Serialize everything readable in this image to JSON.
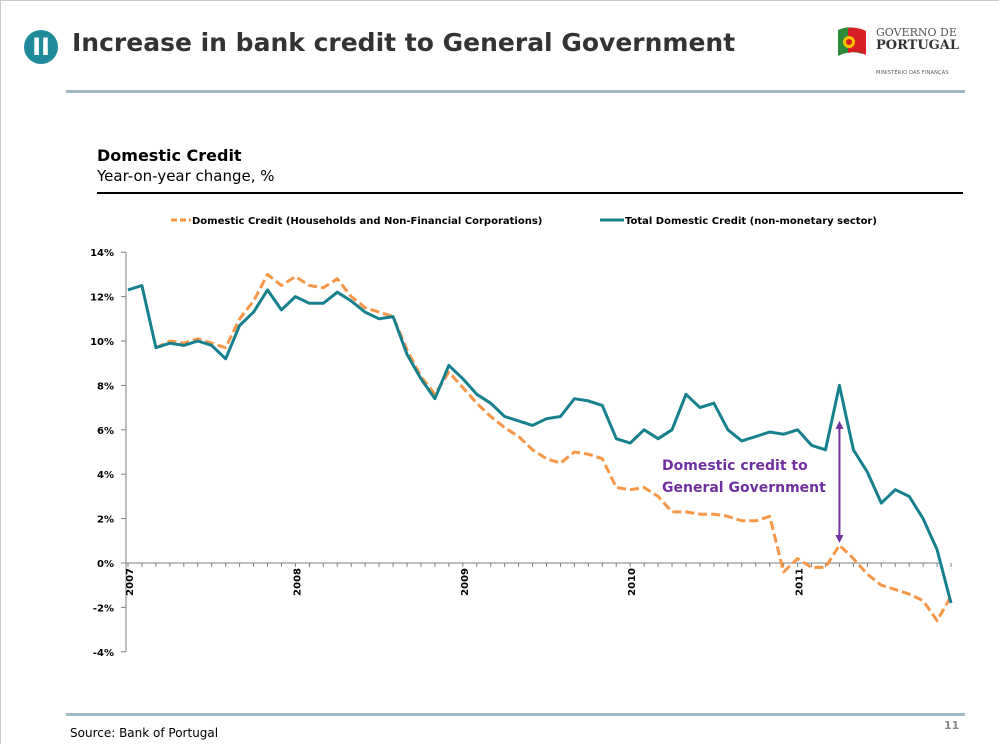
{
  "header": {
    "badge": "II",
    "title": "Increase in bank credit to General Government",
    "logo_line1": "GOVERNO DE",
    "logo_line2": "PORTUGAL",
    "logo_line3": "MINISTÉRIO DAS FINANÇAS"
  },
  "footer": {
    "source": "Source: Bank of Portugal",
    "page_number": "11"
  },
  "colors": {
    "accent": "#1e8a9a",
    "rule": "#9fb9c6",
    "series_total": "#17808e",
    "series_households": "#f79646",
    "annotation": "#7030a0"
  },
  "chart_data": {
    "type": "line",
    "title": "Domestic Credit",
    "subtitle": "Year-on-year change, %",
    "ylim": [
      -4,
      14
    ],
    "yticks": [
      "14%",
      "12%",
      "10%",
      "8%",
      "6%",
      "4%",
      "2%",
      "0%",
      "-2%",
      "-4%"
    ],
    "ytick_values": [
      14,
      12,
      10,
      8,
      6,
      4,
      2,
      0,
      -2,
      -4
    ],
    "xtick_labels": [
      "2007",
      "2008",
      "2009",
      "2010",
      "2011"
    ],
    "xtick_index": [
      0,
      12,
      24,
      36,
      48
    ],
    "legend_position": "top",
    "grid": false,
    "series": [
      {
        "name": "Domestic Credit (Households and Non-Financial Corporations)",
        "style": "dashed",
        "color": "#f79646",
        "values": [
          9.7,
          10.0,
          9.9,
          10.1,
          9.9,
          9.7,
          11.0,
          11.8,
          13.0,
          12.5,
          12.9,
          12.5,
          12.4,
          12.8,
          12.0,
          11.5,
          11.3,
          11.1,
          9.6,
          8.4,
          7.6,
          8.6,
          7.9,
          7.2,
          6.6,
          6.1,
          5.7,
          5.1,
          4.7,
          4.5,
          5.0,
          4.9,
          4.7,
          3.4,
          3.3,
          3.4,
          3.0,
          2.3,
          2.3,
          2.2,
          2.2,
          2.1,
          1.9,
          1.9,
          2.1,
          -0.4,
          0.2,
          -0.2,
          -0.2,
          0.8,
          0.2,
          -0.5,
          -1.0,
          -1.2,
          -1.4,
          -1.7,
          -2.6,
          -1.5
        ],
        "start_index": 2
      },
      {
        "name": "Total Domestic Credit (non-monetary sector)",
        "style": "solid",
        "color": "#17808e",
        "values": [
          12.3,
          12.5,
          9.7,
          9.9,
          9.8,
          10.0,
          9.8,
          9.2,
          10.7,
          11.3,
          12.3,
          11.4,
          12.0,
          11.7,
          11.7,
          12.2,
          11.8,
          11.3,
          11.0,
          11.1,
          9.4,
          8.3,
          7.4,
          8.9,
          8.3,
          7.6,
          7.2,
          6.6,
          6.4,
          6.2,
          6.5,
          6.6,
          7.4,
          7.3,
          7.1,
          5.6,
          5.4,
          6.0,
          5.6,
          6.0,
          7.6,
          7.0,
          7.2,
          6.0,
          5.5,
          5.7,
          5.9,
          5.8,
          6.0,
          5.3,
          5.1,
          8.0,
          5.1,
          4.1,
          2.7,
          3.3,
          3.0,
          2.0,
          0.6,
          -1.8
        ],
        "start_index": 0
      }
    ],
    "annotation": {
      "text_line1": "Domestic credit to",
      "text_line2": "General Government",
      "arrow_index": 51,
      "arrow_from": 0.9,
      "arrow_to": 6.4
    }
  }
}
